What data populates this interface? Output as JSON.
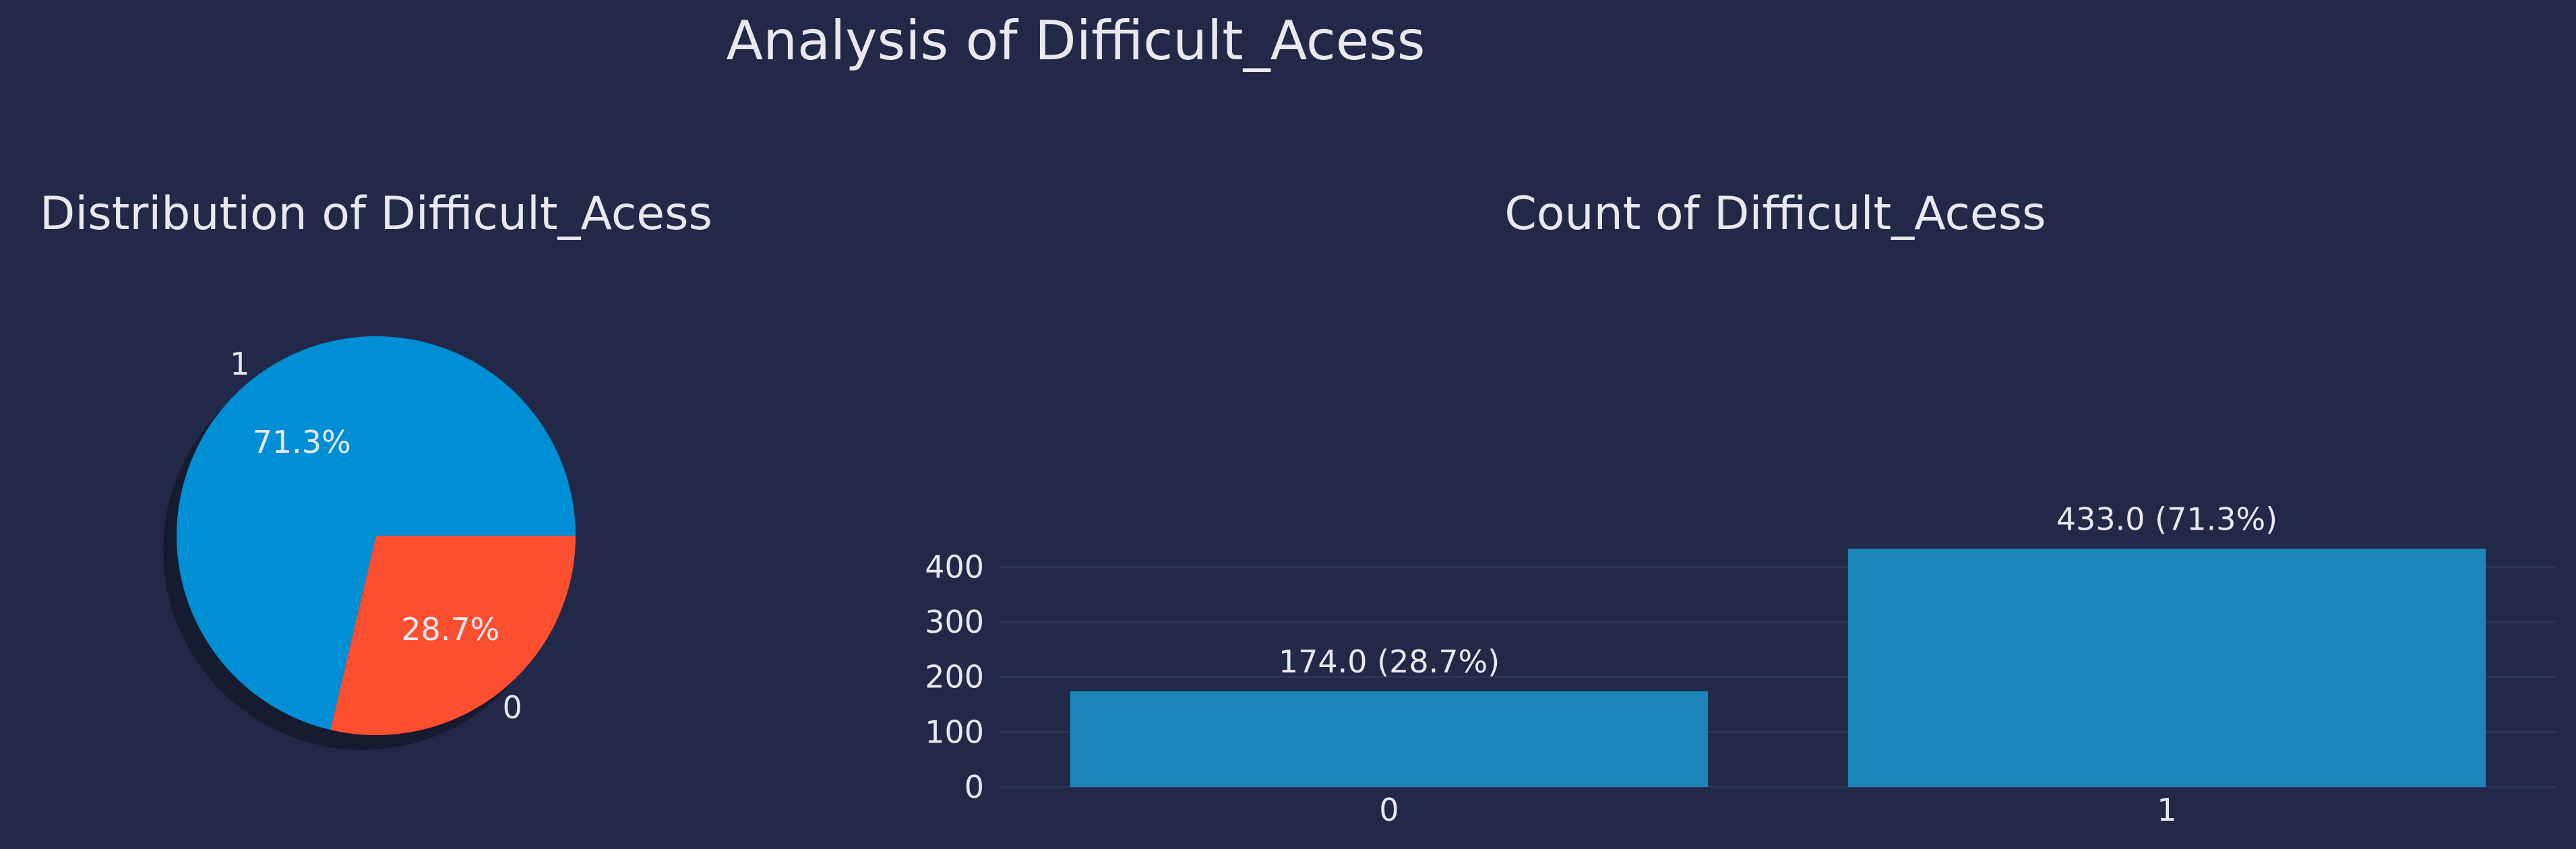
{
  "figure": {
    "title": "Analysis of Difficult_Acess",
    "background": "#222847",
    "text_color": "#e8e8ee",
    "grid_color": "#2c3458"
  },
  "chart_data": [
    {
      "type": "pie",
      "title": "Distribution of Difficult_Acess",
      "slices": [
        {
          "label": "1",
          "value": 433,
          "pct_label": "71.3%",
          "color": "#008fd5"
        },
        {
          "label": "0",
          "value": 174,
          "pct_label": "28.7%",
          "color": "#fc4f30"
        }
      ],
      "start_angle_deg": 0,
      "shadow": true
    },
    {
      "type": "bar",
      "title": "Count of Difficult_Acess",
      "categories": [
        "0",
        "1"
      ],
      "values": [
        174,
        433
      ],
      "data_labels": [
        "174.0 (28.7%)",
        "433.0 (71.3%)"
      ],
      "bar_color": "#1c86bb",
      "ylim": [
        0,
        450
      ],
      "yticks": [
        0,
        100,
        200,
        300,
        400
      ],
      "grid": true,
      "xlabel": "",
      "ylabel": ""
    }
  ]
}
